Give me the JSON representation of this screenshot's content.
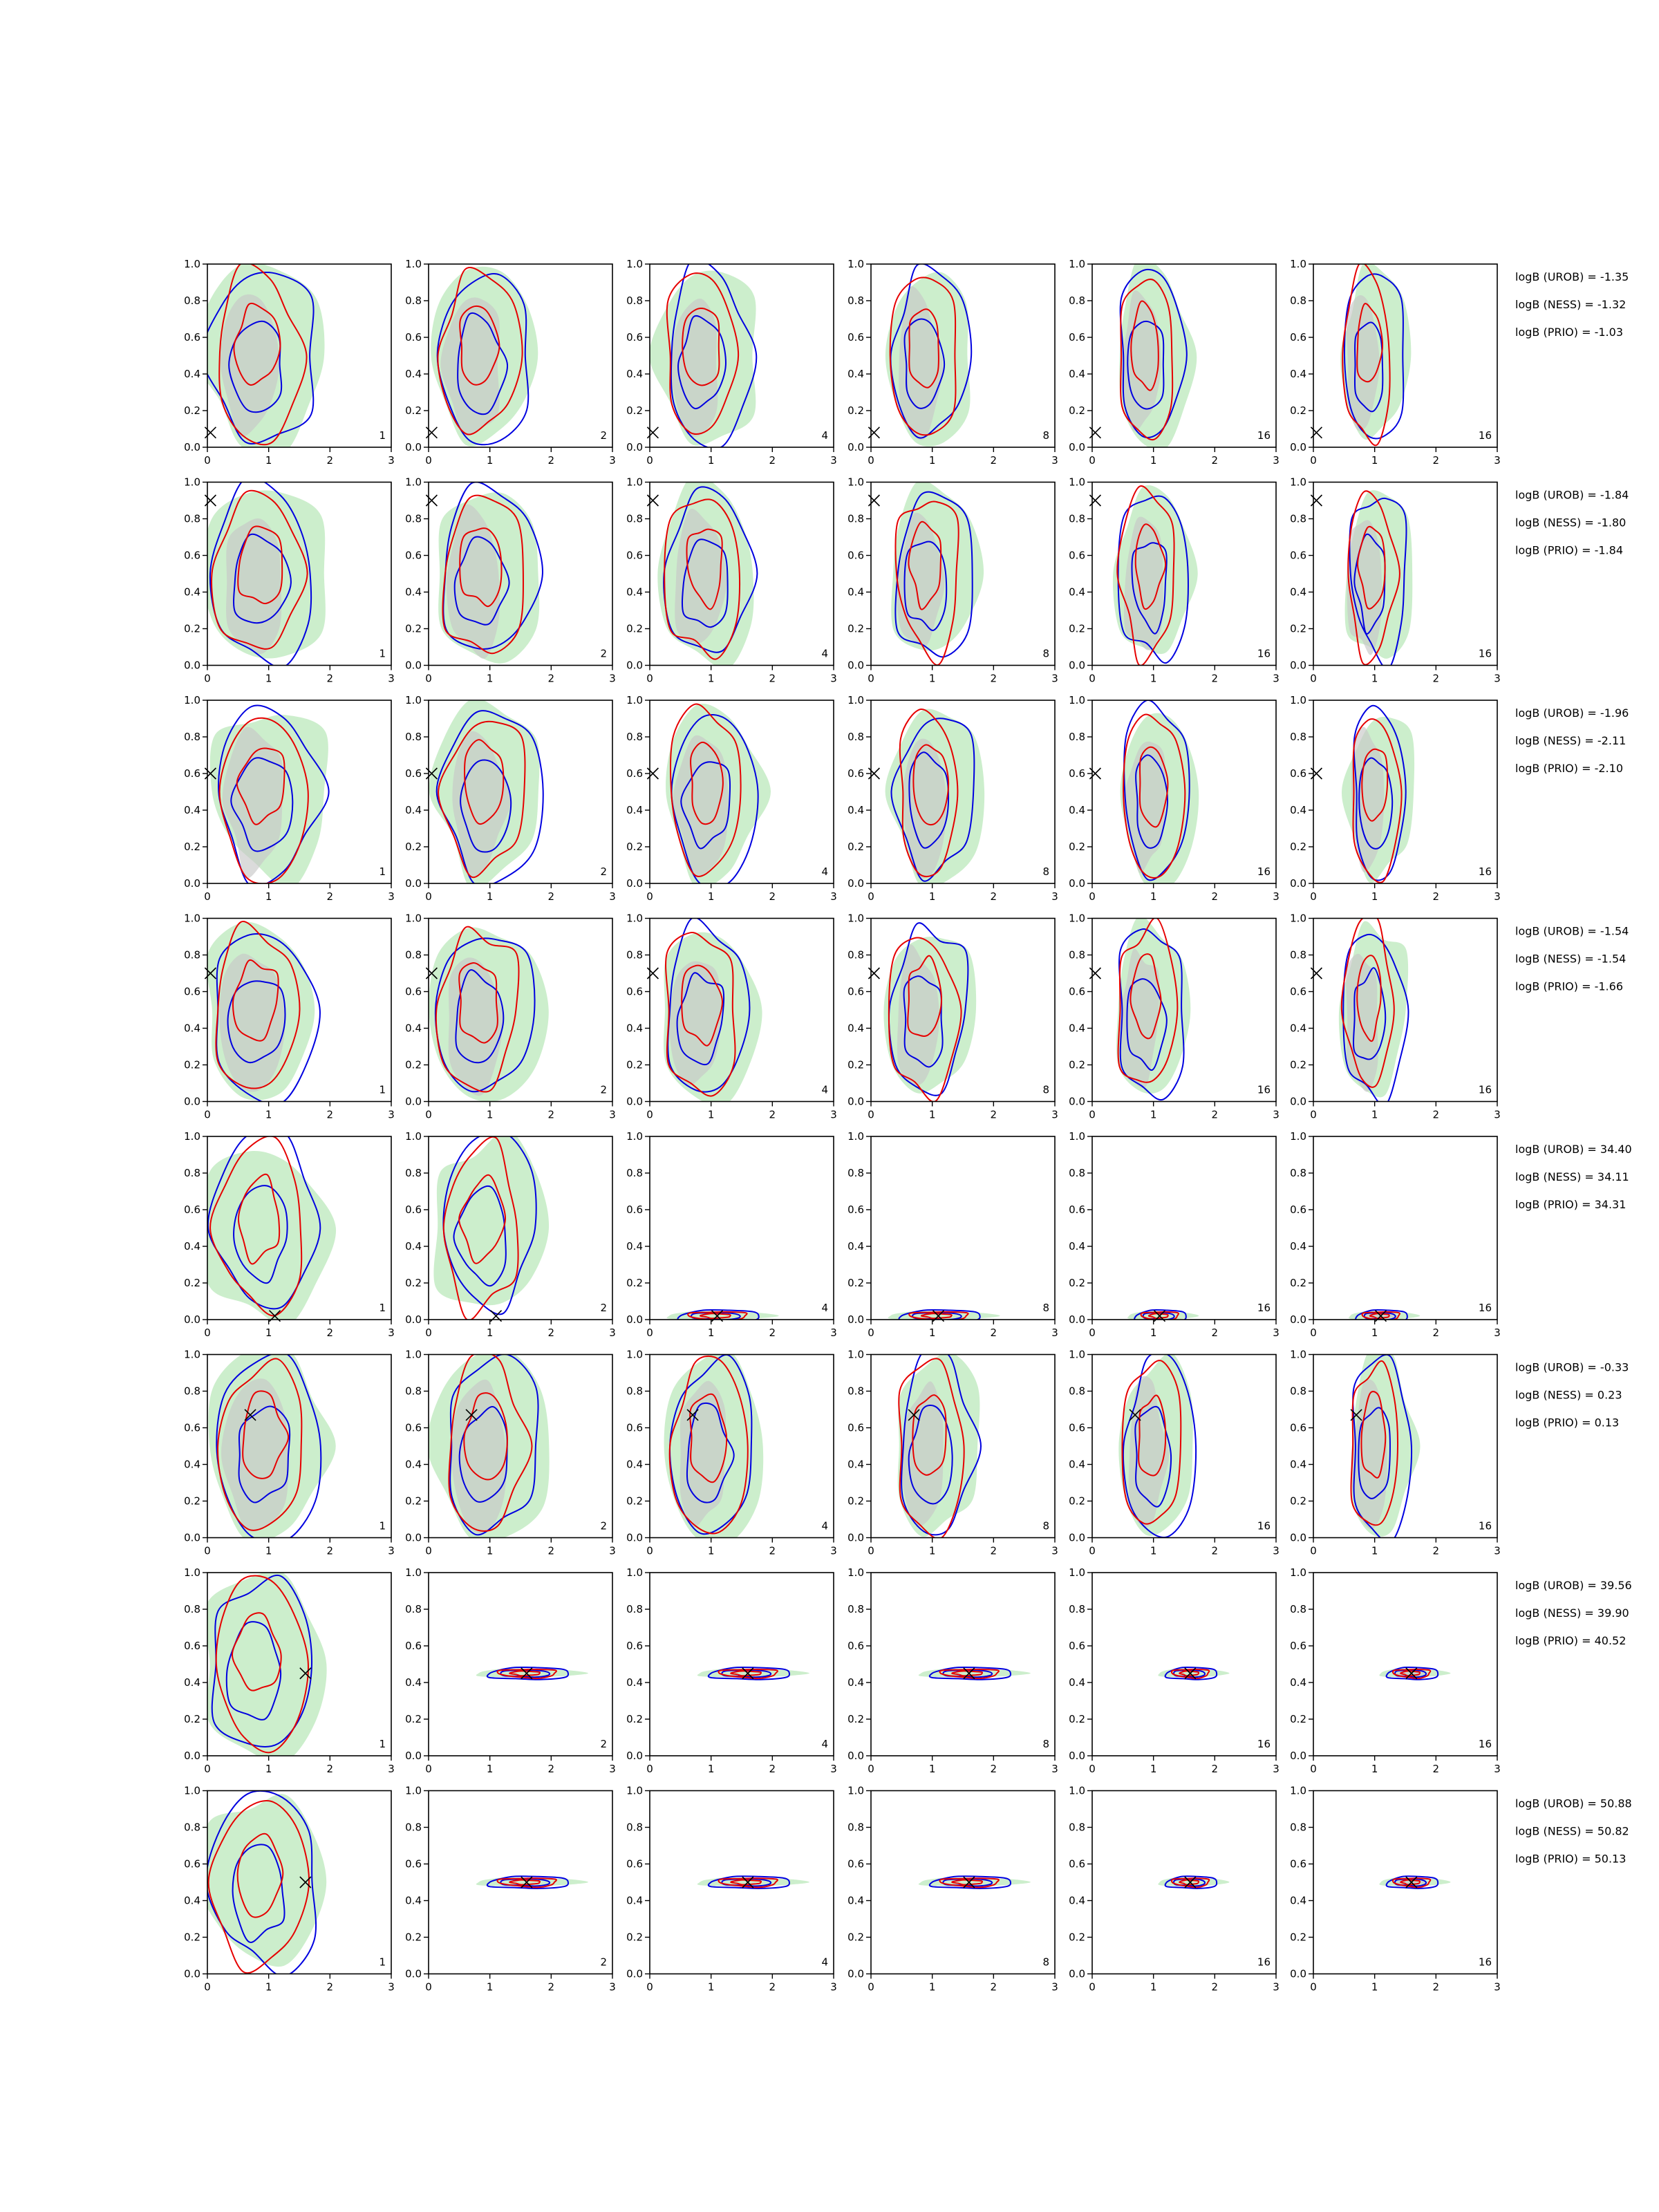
{
  "chart_data": {
    "type": "contour",
    "layout": "8 rows x 6 columns of 2D density contour panels",
    "xlim": [
      0,
      3
    ],
    "ylim": [
      0,
      1
    ],
    "x_ticks": [
      "0",
      "1",
      "2",
      "3"
    ],
    "y_ticks": [
      "0.0",
      "0.2",
      "0.4",
      "0.6",
      "0.8",
      "1.0"
    ],
    "column_labels": [
      "1",
      "2",
      "4",
      "8",
      "16",
      "16"
    ],
    "colors": {
      "green_fill": "#b6e7b6",
      "gray_fill": "#c8c8c8",
      "red_contour": "#e60000",
      "blue_contour": "#0000e0",
      "marker": "#000000"
    },
    "rows": [
      {
        "truth_marker": {
          "x": 0.05,
          "y": 0.08
        },
        "logb": [
          "logB (UROB) = -1.35",
          "logB (NESS) = -1.32",
          "logB (PRIO) = -1.03"
        ]
      },
      {
        "truth_marker": {
          "x": 0.05,
          "y": 0.9
        },
        "logb": [
          "logB (UROB) = -1.84",
          "logB (NESS) = -1.80",
          "logB (PRIO) = -1.84"
        ]
      },
      {
        "truth_marker": {
          "x": 0.05,
          "y": 0.6
        },
        "logb": [
          "logB (UROB) = -1.96",
          "logB (NESS) = -2.11",
          "logB (PRIO) = -2.10"
        ]
      },
      {
        "truth_marker": {
          "x": 0.05,
          "y": 0.7
        },
        "logb": [
          "logB (UROB) = -1.54",
          "logB (NESS) = -1.54",
          "logB (PRIO) = -1.66"
        ]
      },
      {
        "truth_marker": {
          "x": 1.1,
          "y": 0.02
        },
        "logb": [
          "logB (UROB) = 34.40",
          "logB (NESS) = 34.11",
          "logB (PRIO) = 34.31"
        ]
      },
      {
        "truth_marker": {
          "x": 0.7,
          "y": 0.67
        },
        "logb": [
          "logB (UROB) = -0.33",
          "logB (NESS) = 0.23",
          "logB (PRIO) = 0.13"
        ]
      },
      {
        "truth_marker": {
          "x": 1.6,
          "y": 0.45
        },
        "logb": [
          "logB (UROB) = 39.56",
          "logB (NESS) = 39.90",
          "logB (PRIO) = 40.52"
        ]
      },
      {
        "truth_marker": {
          "x": 1.6,
          "y": 0.5
        },
        "logb": [
          "logB (UROB) = 50.88",
          "logB (NESS) = 50.82",
          "logB (PRIO) = 50.13"
        ]
      }
    ]
  }
}
